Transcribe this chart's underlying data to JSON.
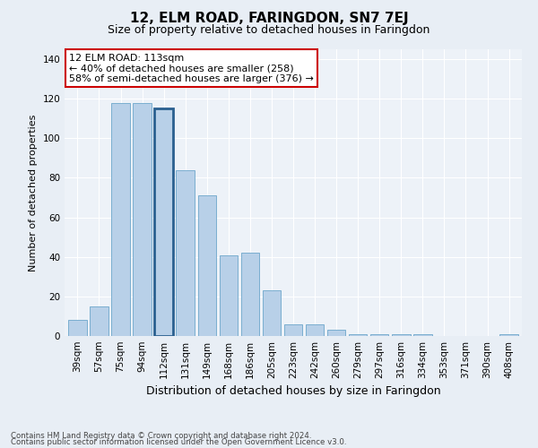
{
  "title": "12, ELM ROAD, FARINGDON, SN7 7EJ",
  "subtitle": "Size of property relative to detached houses in Faringdon",
  "xlabel": "Distribution of detached houses by size in Faringdon",
  "ylabel": "Number of detached properties",
  "categories": [
    "39sqm",
    "57sqm",
    "75sqm",
    "94sqm",
    "112sqm",
    "131sqm",
    "149sqm",
    "168sqm",
    "186sqm",
    "205sqm",
    "223sqm",
    "242sqm",
    "260sqm",
    "279sqm",
    "297sqm",
    "316sqm",
    "334sqm",
    "353sqm",
    "371sqm",
    "390sqm",
    "408sqm"
  ],
  "values": [
    8,
    15,
    118,
    118,
    115,
    84,
    71,
    41,
    42,
    23,
    6,
    6,
    3,
    1,
    1,
    1,
    1,
    0,
    0,
    0,
    1
  ],
  "bar_color": "#b8d0e8",
  "bar_edge_color": "#7aaed0",
  "highlight_index": 4,
  "highlight_edge_color": "#2a6090",
  "annotation_line1": "12 ELM ROAD: 113sqm",
  "annotation_line2": "← 40% of detached houses are smaller (258)",
  "annotation_line3": "58% of semi-detached houses are larger (376) →",
  "annotation_box_color": "white",
  "annotation_box_edge": "#cc0000",
  "ylim": [
    0,
    145
  ],
  "yticks": [
    0,
    20,
    40,
    60,
    80,
    100,
    120,
    140
  ],
  "footer1": "Contains HM Land Registry data © Crown copyright and database right 2024.",
  "footer2": "Contains public sector information licensed under the Open Government Licence v3.0.",
  "bg_color": "#e8eef5",
  "plot_bg_color": "#edf2f8",
  "title_fontsize": 11,
  "subtitle_fontsize": 9,
  "ylabel_fontsize": 8,
  "xlabel_fontsize": 9,
  "tick_fontsize": 7.5,
  "annot_fontsize": 8
}
